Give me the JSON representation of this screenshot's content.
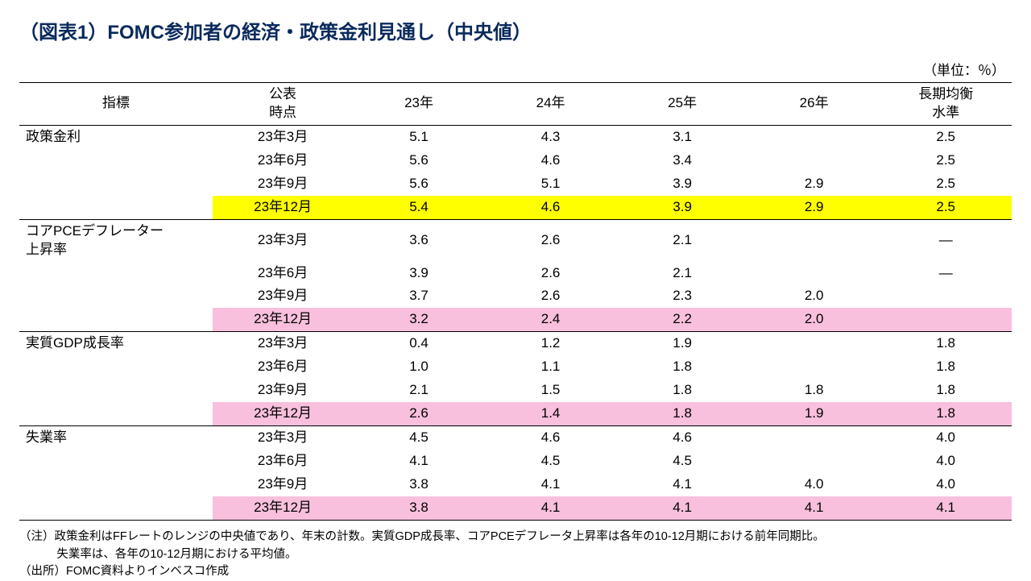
{
  "title": "（図表1）FOMC参加者の経済・政策金利見通し（中央値）",
  "unit_label": "（単位：％）",
  "headers": {
    "indicator": "指標",
    "timing_l1": "公表",
    "timing_l2": "時点",
    "y23": "23年",
    "y24": "24年",
    "y25": "25年",
    "y26": "26年",
    "long_l1": "長期均衡",
    "long_l2": "水準"
  },
  "groups": [
    {
      "label": "政策金利",
      "highlight_color": "#ffff00",
      "rows": [
        {
          "timing": "23年3月",
          "y23": "5.1",
          "y24": "4.3",
          "y25": "3.1",
          "y26": "",
          "long": "2.5",
          "hl": false
        },
        {
          "timing": "23年6月",
          "y23": "5.6",
          "y24": "4.6",
          "y25": "3.4",
          "y26": "",
          "long": "2.5",
          "hl": false
        },
        {
          "timing": "23年9月",
          "y23": "5.6",
          "y24": "5.1",
          "y25": "3.9",
          "y26": "2.9",
          "long": "2.5",
          "hl": false
        },
        {
          "timing": "23年12月",
          "y23": "5.4",
          "y24": "4.6",
          "y25": "3.9",
          "y26": "2.9",
          "long": "2.5",
          "hl": true
        }
      ]
    },
    {
      "label_l1": "コアPCEデフレーター",
      "label_l2": "上昇率",
      "highlight_color": "#f8c0dd",
      "rows": [
        {
          "timing": "23年3月",
          "y23": "3.6",
          "y24": "2.6",
          "y25": "2.1",
          "y26": "",
          "long": "—",
          "hl": false
        },
        {
          "timing": "23年6月",
          "y23": "3.9",
          "y24": "2.6",
          "y25": "2.1",
          "y26": "",
          "long": "—",
          "hl": false
        },
        {
          "timing": "23年9月",
          "y23": "3.7",
          "y24": "2.6",
          "y25": "2.3",
          "y26": "2.0",
          "long": "",
          "hl": false
        },
        {
          "timing": "23年12月",
          "y23": "3.2",
          "y24": "2.4",
          "y25": "2.2",
          "y26": "2.0",
          "long": "",
          "hl": true
        }
      ]
    },
    {
      "label": "実質GDP成長率",
      "highlight_color": "#f8c0dd",
      "rows": [
        {
          "timing": "23年3月",
          "y23": "0.4",
          "y24": "1.2",
          "y25": "1.9",
          "y26": "",
          "long": "1.8",
          "hl": false
        },
        {
          "timing": "23年6月",
          "y23": "1.0",
          "y24": "1.1",
          "y25": "1.8",
          "y26": "",
          "long": "1.8",
          "hl": false
        },
        {
          "timing": "23年9月",
          "y23": "2.1",
          "y24": "1.5",
          "y25": "1.8",
          "y26": "1.8",
          "long": "1.8",
          "hl": false
        },
        {
          "timing": "23年12月",
          "y23": "2.6",
          "y24": "1.4",
          "y25": "1.8",
          "y26": "1.9",
          "long": "1.8",
          "hl": true
        }
      ]
    },
    {
      "label": "失業率",
      "highlight_color": "#f8c0dd",
      "rows": [
        {
          "timing": "23年3月",
          "y23": "4.5",
          "y24": "4.6",
          "y25": "4.6",
          "y26": "",
          "long": "4.0",
          "hl": false
        },
        {
          "timing": "23年6月",
          "y23": "4.1",
          "y24": "4.5",
          "y25": "4.5",
          "y26": "",
          "long": "4.0",
          "hl": false
        },
        {
          "timing": "23年9月",
          "y23": "3.8",
          "y24": "4.1",
          "y25": "4.1",
          "y26": "4.0",
          "long": "4.0",
          "hl": false
        },
        {
          "timing": "23年12月",
          "y23": "3.8",
          "y24": "4.1",
          "y25": "4.1",
          "y26": "4.1",
          "long": "4.1",
          "hl": true
        }
      ]
    }
  ],
  "notes": {
    "l1": "（注）政策金利はFFレートのレンジの中央値であり、年末の計数。実質GDP成長率、コアPCEデフレータ上昇率は各年の10-12月期における前年同期比。",
    "l2": "失業率は、各年の10-12月期における平均値。",
    "l3": "（出所）FOMC資料よりインベスコ作成"
  },
  "styling": {
    "title_color": "#0a2a5c",
    "title_fontsize": 24,
    "body_fontsize": 17,
    "notes_fontsize": 14.5,
    "border_color": "#000000",
    "background_color": "#ffffff",
    "highlight_yellow": "#ffff00",
    "highlight_pink": "#f8c0dd"
  }
}
